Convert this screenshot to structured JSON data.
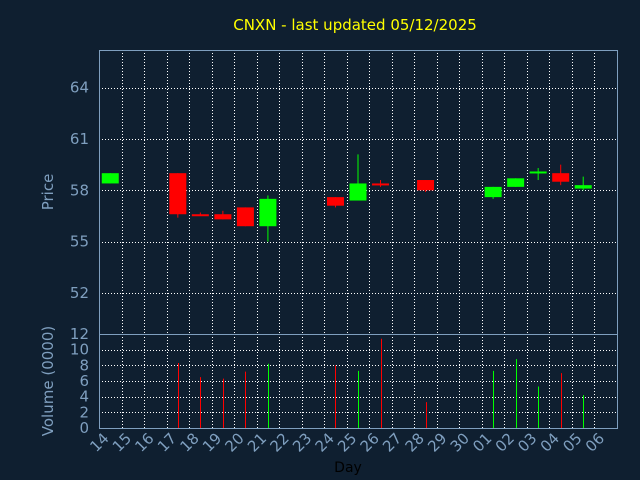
{
  "chart_data": {
    "type": "candlestick",
    "title": "CNXN - last updated 05/12/2025",
    "xlabel": "Day",
    "price_panel": {
      "ylabel": "Price",
      "ylim": [
        49.6,
        66.2
      ],
      "yticks": [
        52,
        55,
        58,
        61,
        64
      ]
    },
    "volume_panel": {
      "ylabel": "Volume (0000)",
      "ylim": [
        0,
        12
      ],
      "yticks": [
        0,
        2,
        4,
        6,
        8,
        10,
        12
      ]
    },
    "day_labels": [
      "14",
      "15",
      "16",
      "17",
      "18",
      "19",
      "20",
      "21",
      "22",
      "23",
      "24",
      "25",
      "26",
      "27",
      "28",
      "29",
      "30",
      "01",
      "02",
      "03",
      "04",
      "05",
      "06"
    ],
    "candles": [
      {
        "day": "14",
        "open": 58.4,
        "high": 59.0,
        "low": 58.4,
        "close": 59.0,
        "volume": 0
      },
      {
        "day": "17",
        "open": 59.0,
        "high": 59.0,
        "low": 56.4,
        "close": 56.6,
        "volume": 8.3
      },
      {
        "day": "18",
        "open": 56.6,
        "high": 56.7,
        "low": 56.5,
        "close": 56.5,
        "volume": 6.5
      },
      {
        "day": "19",
        "open": 56.6,
        "high": 56.8,
        "low": 56.3,
        "close": 56.3,
        "volume": 6.3
      },
      {
        "day": "20",
        "open": 57.0,
        "high": 57.0,
        "low": 55.9,
        "close": 55.9,
        "volume": 7.2
      },
      {
        "day": "21",
        "open": 55.9,
        "high": 57.7,
        "low": 55.0,
        "close": 57.5,
        "volume": 8.2
      },
      {
        "day": "24",
        "open": 57.6,
        "high": 57.6,
        "low": 57.0,
        "close": 57.1,
        "volume": 8.0
      },
      {
        "day": "25",
        "open": 57.4,
        "high": 60.1,
        "low": 57.4,
        "close": 58.4,
        "volume": 7.3
      },
      {
        "day": "26",
        "open": 58.4,
        "high": 58.6,
        "low": 58.2,
        "close": 58.3,
        "volume": 11.4
      },
      {
        "day": "28",
        "open": 58.6,
        "high": 58.6,
        "low": 57.9,
        "close": 58.0,
        "volume": 3.3
      },
      {
        "day": "01",
        "open": 57.6,
        "high": 58.2,
        "low": 57.5,
        "close": 58.2,
        "volume": 7.3
      },
      {
        "day": "02",
        "open": 58.2,
        "high": 58.7,
        "low": 58.2,
        "close": 58.7,
        "volume": 8.8
      },
      {
        "day": "03",
        "open": 59.0,
        "high": 59.3,
        "low": 58.6,
        "close": 59.1,
        "volume": 5.3
      },
      {
        "day": "04",
        "open": 59.0,
        "high": 59.5,
        "low": 58.3,
        "close": 58.5,
        "volume": 7.0
      },
      {
        "day": "05",
        "open": 58.1,
        "high": 58.8,
        "low": 58.0,
        "close": 58.3,
        "volume": 4.2
      }
    ],
    "colors": {
      "up": "#00ff00",
      "down": "#ff0000",
      "background": "#0f1f30",
      "grid": "#ffffff",
      "frame": "#7f9fbf",
      "title": "#ffff00",
      "axis_text": "#7f9fbf",
      "xlabel_text": "#000000"
    },
    "grid": true,
    "legend": "none"
  }
}
